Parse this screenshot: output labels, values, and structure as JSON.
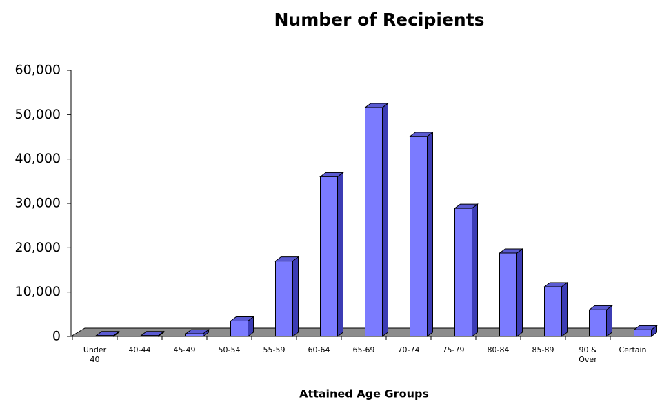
{
  "chart_data": {
    "type": "bar3d",
    "title": "Number of Recipients",
    "x_label": "Attained Age Groups",
    "categories": [
      "Under 40",
      "40-44",
      "45-49",
      "50-54",
      "55-59",
      "60-64",
      "65-69",
      "70-74",
      "75-79",
      "80-84",
      "85-89",
      "90 & Over",
      "Certain"
    ],
    "values": [
      200,
      200,
      600,
      3500,
      17000,
      36000,
      51600,
      45100,
      28900,
      18800,
      11200,
      6000,
      1500
    ],
    "color": "#7b7bff",
    "ylim": [
      0,
      60000
    ],
    "yticks": [
      0,
      {
        "value": 10000,
        "label": "10,000"
      },
      {
        "value": 20000,
        "label": "20,000"
      },
      {
        "value": 30000,
        "label": "30,000"
      },
      {
        "value": 40000,
        "label": "40,000"
      },
      {
        "value": 50000,
        "label": "50,000"
      },
      {
        "value": 60000,
        "label": "60,000"
      }
    ]
  }
}
